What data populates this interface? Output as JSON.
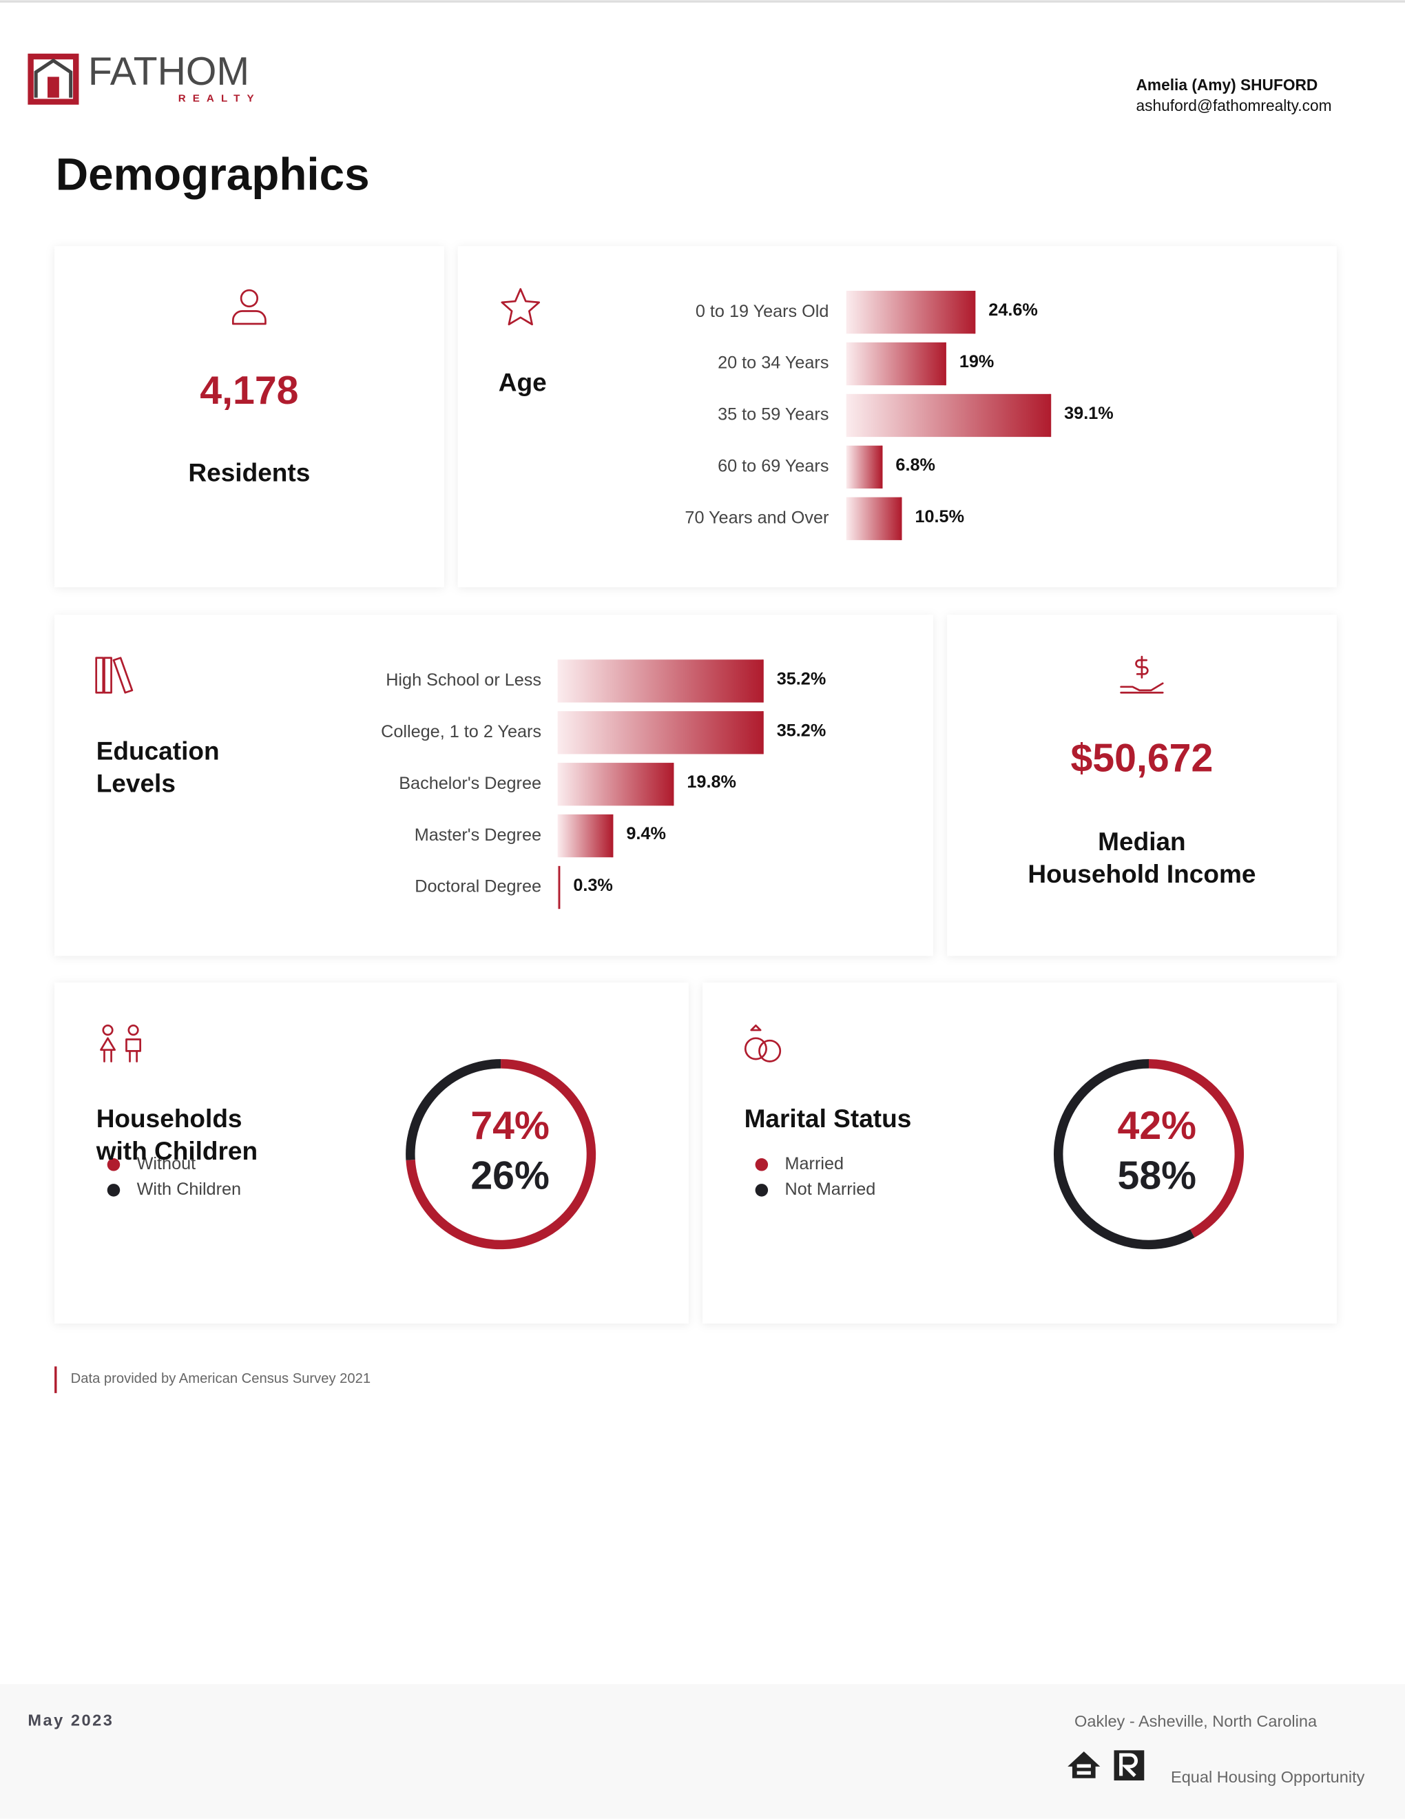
{
  "header": {
    "logo_name": "FATHOM",
    "logo_tagline": "REALTY",
    "agent_name": "Amelia (Amy) SHUFORD",
    "agent_email": "ashuford@fathomrealty.com"
  },
  "title": "Demographics",
  "residents": {
    "value": "4,178",
    "label": "Residents"
  },
  "income": {
    "value": "$50,672",
    "label_lines": [
      "Median",
      "Household Income"
    ]
  },
  "chart_data": [
    {
      "type": "bar",
      "title_lines": [
        "Age"
      ],
      "categories": [
        "0 to 19 Years Old",
        "20 to 34 Years",
        "35 to 59 Years",
        "60 to 69 Years",
        "70 Years and Over"
      ],
      "values": [
        24.6,
        19,
        39.1,
        6.8,
        10.5
      ],
      "value_labels": [
        "24.6%",
        "19%",
        "39.1%",
        "6.8%",
        "10.5%"
      ],
      "color": "#b01c2e"
    },
    {
      "type": "bar",
      "title_lines": [
        "Education",
        "Levels"
      ],
      "categories": [
        "High School or Less",
        "College, 1 to 2 Years",
        "Bachelor's Degree",
        "Master's Degree",
        "Doctoral Degree"
      ],
      "values": [
        35.2,
        35.2,
        19.8,
        9.4,
        0.3
      ],
      "value_labels": [
        "35.2%",
        "35.2%",
        "19.8%",
        "9.4%",
        "0.3%"
      ],
      "color": "#b01c2e"
    },
    {
      "type": "donut",
      "title_lines": [
        "Households",
        "with Children"
      ],
      "categories": [
        "Without",
        "With Children"
      ],
      "values": [
        74,
        26
      ],
      "value_labels": [
        "74%",
        "26%"
      ],
      "colors": [
        "#b01c2e",
        "#1f1f24"
      ]
    },
    {
      "type": "donut",
      "title_lines": [
        "Marital Status"
      ],
      "categories": [
        "Married",
        "Not Married"
      ],
      "values": [
        42,
        58
      ],
      "value_labels": [
        "42%",
        "58%"
      ],
      "colors": [
        "#b01c2e",
        "#1f1f24"
      ]
    }
  ],
  "source": "Data provided by American Census Survey 2021",
  "footer": {
    "date": "May 2023",
    "location": "Oakley - Asheville, North Carolina",
    "equal_housing": "Equal Housing Opportunity"
  }
}
